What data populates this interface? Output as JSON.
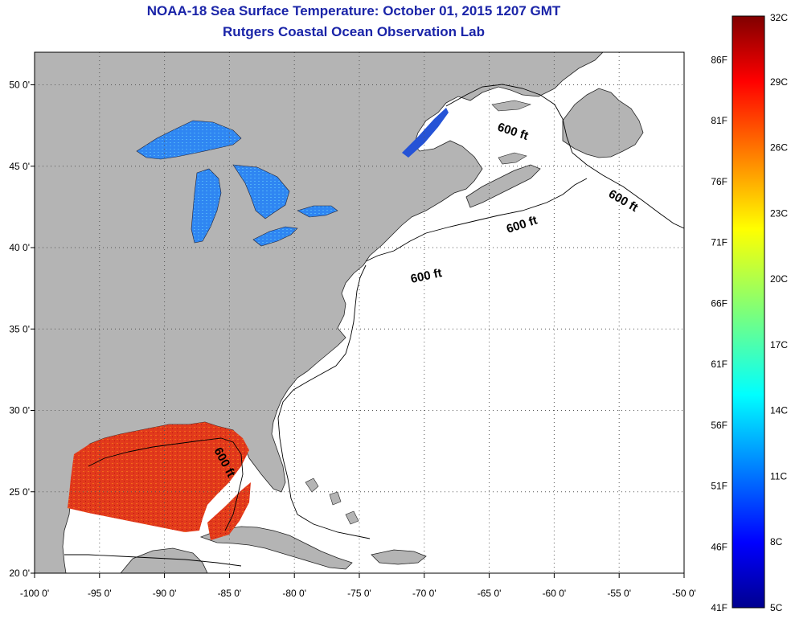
{
  "header": {
    "title": "NOAA-18 Sea Surface Temperature:  October 01, 2015 1207 GMT",
    "subtitle": "Rutgers Coastal Ocean Observation Lab"
  },
  "map": {
    "projection": "lon-lat",
    "lon_range": [
      -100,
      -50
    ],
    "lat_range": [
      20,
      52
    ],
    "grid": true,
    "x_ticks": [
      {
        "value": -100,
        "label": "-100 0'"
      },
      {
        "value": -95,
        "label": "-95 0'"
      },
      {
        "value": -90,
        "label": "-90 0'"
      },
      {
        "value": -85,
        "label": "-85 0'"
      },
      {
        "value": -80,
        "label": "-80 0'"
      },
      {
        "value": -75,
        "label": "-75 0'"
      },
      {
        "value": -70,
        "label": "-70 0'"
      },
      {
        "value": -65,
        "label": "-65 0'"
      },
      {
        "value": -60,
        "label": "-60 0'"
      },
      {
        "value": -55,
        "label": "-55 0'"
      },
      {
        "value": -50,
        "label": "-50 0'"
      }
    ],
    "y_ticks": [
      {
        "value": 20,
        "label": "20 0'"
      },
      {
        "value": 25,
        "label": "25 0'"
      },
      {
        "value": 30,
        "label": "30 0'"
      },
      {
        "value": 35,
        "label": "35 0'"
      },
      {
        "value": 40,
        "label": "40 0'"
      },
      {
        "value": 45,
        "label": "45 0'"
      },
      {
        "value": 50,
        "label": "50 0'"
      }
    ],
    "contour_labels": [
      "600 ft",
      "600 ft",
      "600 ft",
      "600 ft",
      "600 ft"
    ],
    "colors": {
      "land": "#b4b4b4",
      "ocean": "#ffffff",
      "grid": "#555555",
      "gulf_sst": "#e8321e",
      "lakes_sst": "#2a7ef0"
    }
  },
  "colorbar": {
    "celsius_labels": [
      "32C",
      "29C",
      "26C",
      "23C",
      "20C",
      "17C",
      "14C",
      "11C",
      "8C",
      "5C"
    ],
    "fahrenheit_labels": [
      "86F",
      "81F",
      "76F",
      "71F",
      "66F",
      "61F",
      "56F",
      "51F",
      "46F",
      "41F"
    ],
    "celsius_range": [
      5,
      32
    ],
    "fahrenheit_range": [
      41,
      89.6
    ],
    "colormap": "jet"
  }
}
